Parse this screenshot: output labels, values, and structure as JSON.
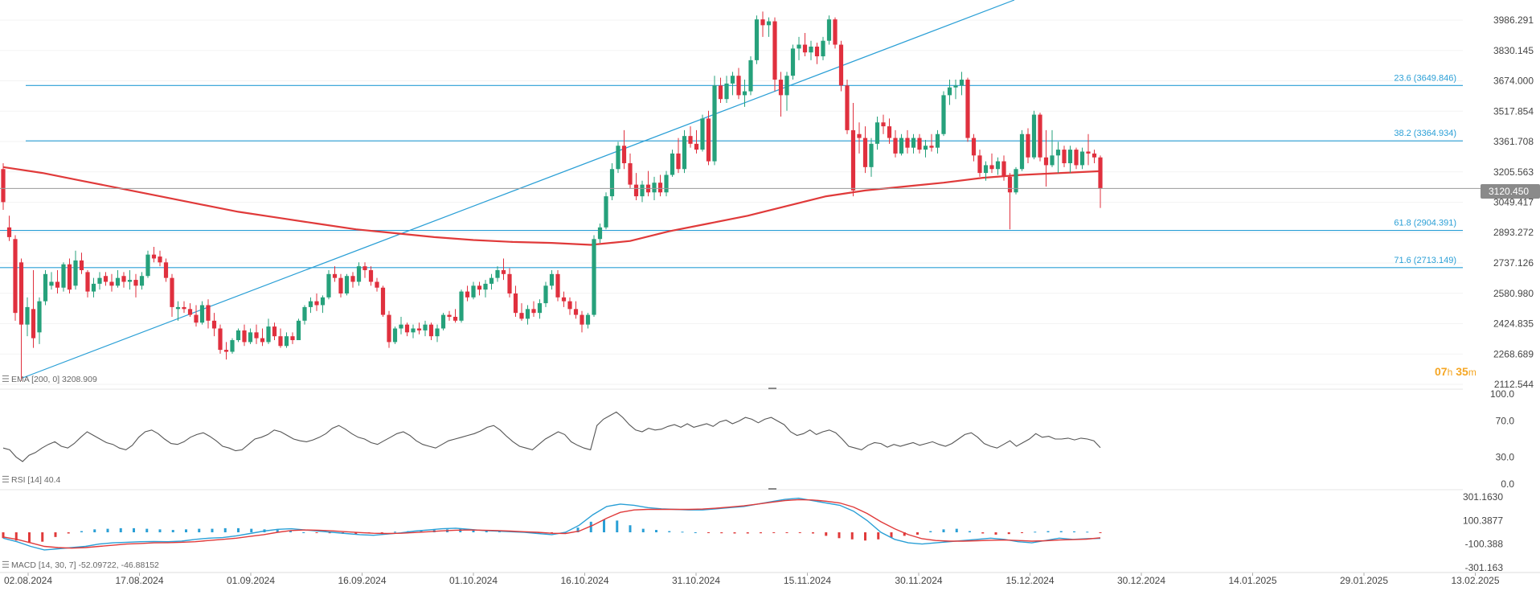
{
  "price_axis": [
    "3986.291",
    "3830.145",
    "3674.000",
    "3517.854",
    "3361.708",
    "3205.563",
    "3049.417",
    "2893.272",
    "2737.126",
    "2580.980",
    "2424.835",
    "2268.689",
    "2112.544"
  ],
  "current_price": "3120.450",
  "countdown": {
    "hours": "07",
    "h": "h",
    "minutes": "35",
    "m": "m"
  },
  "fib_levels": [
    {
      "label": "23.6 (3649.846)",
      "value": 3649.846
    },
    {
      "label": "38.2 (3364.934)",
      "value": 3364.934
    },
    {
      "label": "61.8 (2904.391)",
      "value": 2904.391
    },
    {
      "label": "71.6 (2713.149)",
      "value": 2713.149
    }
  ],
  "ema_label": "EMA [200, 0] 3208.909",
  "rsi_axis": [
    "100.0",
    "70.0",
    "30.0",
    "0.0"
  ],
  "rsi_label": "RSI [14] 40.4",
  "macd_axis": [
    "301.1630",
    "100.3877",
    "-100.388",
    "-301.163"
  ],
  "macd_label": "MACD [14, 30, 7] -52.09722, -46.88152",
  "dates": [
    "02.08.2024",
    "17.08.2024",
    "01.09.2024",
    "16.09.2024",
    "01.10.2024",
    "16.10.2024",
    "31.10.2024",
    "15.11.2024",
    "30.11.2024",
    "15.12.2024",
    "30.12.2024",
    "14.01.2025",
    "29.01.2025",
    "13.02.2025"
  ],
  "colors": {
    "up": "#26a17b",
    "down": "#e0303e",
    "ema": "#e03a3a",
    "fib": "#2a9fd6",
    "rsi": "#555555",
    "macd": "#2a9fd6",
    "signal": "#e03a3a",
    "countdown": "#f5a623"
  },
  "chart_data": {
    "type": "candlestick",
    "title": "",
    "xlabel": "",
    "ylabel": "",
    "ylim": [
      2112.544,
      4020
    ],
    "x_start": "02.08.2024",
    "candles": [
      [
        3220,
        3250,
        3010,
        3050
      ],
      [
        2920,
        2980,
        2850,
        2870
      ],
      [
        2860,
        2880,
        2440,
        2480
      ],
      [
        2740,
        2760,
        2130,
        2420
      ],
      [
        2420,
        2560,
        2360,
        2510
      ],
      [
        2500,
        2700,
        2300,
        2350
      ],
      [
        2380,
        2560,
        2320,
        2540
      ],
      [
        2540,
        2700,
        2520,
        2680
      ],
      [
        2620,
        2690,
        2600,
        2640
      ],
      [
        2640,
        2700,
        2580,
        2610
      ],
      [
        2610,
        2740,
        2590,
        2730
      ],
      [
        2730,
        2760,
        2580,
        2600
      ],
      [
        2620,
        2800,
        2600,
        2750
      ],
      [
        2750,
        2790,
        2680,
        2700
      ],
      [
        2690,
        2700,
        2560,
        2590
      ],
      [
        2590,
        2660,
        2560,
        2630
      ],
      [
        2630,
        2690,
        2600,
        2660
      ],
      [
        2670,
        2690,
        2620,
        2640
      ],
      [
        2640,
        2680,
        2590,
        2620
      ],
      [
        2620,
        2700,
        2610,
        2660
      ],
      [
        2670,
        2690,
        2610,
        2640
      ],
      [
        2640,
        2700,
        2600,
        2650
      ],
      [
        2650,
        2680,
        2560,
        2620
      ],
      [
        2620,
        2690,
        2600,
        2670
      ],
      [
        2670,
        2800,
        2660,
        2780
      ],
      [
        2780,
        2820,
        2740,
        2760
      ],
      [
        2770,
        2800,
        2720,
        2740
      ],
      [
        2740,
        2760,
        2640,
        2660
      ],
      [
        2660,
        2680,
        2460,
        2510
      ],
      [
        2500,
        2540,
        2440,
        2510
      ],
      [
        2510,
        2540,
        2480,
        2500
      ],
      [
        2500,
        2530,
        2460,
        2470
      ],
      [
        2470,
        2520,
        2410,
        2430
      ],
      [
        2430,
        2540,
        2420,
        2520
      ],
      [
        2520,
        2550,
        2400,
        2440
      ],
      [
        2440,
        2480,
        2360,
        2400
      ],
      [
        2400,
        2420,
        2270,
        2290
      ],
      [
        2290,
        2330,
        2240,
        2280
      ],
      [
        2280,
        2350,
        2270,
        2340
      ],
      [
        2340,
        2400,
        2330,
        2390
      ],
      [
        2390,
        2420,
        2310,
        2330
      ],
      [
        2330,
        2400,
        2320,
        2380
      ],
      [
        2380,
        2420,
        2320,
        2350
      ],
      [
        2350,
        2400,
        2310,
        2330
      ],
      [
        2330,
        2450,
        2320,
        2410
      ],
      [
        2410,
        2430,
        2340,
        2360
      ],
      [
        2360,
        2400,
        2300,
        2310
      ],
      [
        2310,
        2380,
        2300,
        2360
      ],
      [
        2360,
        2380,
        2320,
        2340
      ],
      [
        2340,
        2450,
        2340,
        2440
      ],
      [
        2440,
        2520,
        2420,
        2510
      ],
      [
        2510,
        2560,
        2480,
        2540
      ],
      [
        2540,
        2580,
        2490,
        2520
      ],
      [
        2520,
        2570,
        2480,
        2560
      ],
      [
        2560,
        2700,
        2550,
        2680
      ],
      [
        2680,
        2720,
        2640,
        2660
      ],
      [
        2660,
        2680,
        2560,
        2580
      ],
      [
        2580,
        2680,
        2570,
        2670
      ],
      [
        2670,
        2690,
        2610,
        2640
      ],
      [
        2640,
        2740,
        2620,
        2720
      ],
      [
        2720,
        2740,
        2660,
        2700
      ],
      [
        2700,
        2720,
        2620,
        2640
      ],
      [
        2640,
        2660,
        2590,
        2610
      ],
      [
        2610,
        2620,
        2460,
        2470
      ],
      [
        2470,
        2490,
        2300,
        2330
      ],
      [
        2330,
        2410,
        2320,
        2400
      ],
      [
        2400,
        2460,
        2370,
        2420
      ],
      [
        2420,
        2430,
        2360,
        2380
      ],
      [
        2380,
        2420,
        2350,
        2400
      ],
      [
        2400,
        2430,
        2370,
        2390
      ],
      [
        2390,
        2440,
        2360,
        2420
      ],
      [
        2420,
        2430,
        2340,
        2360
      ],
      [
        2360,
        2420,
        2330,
        2400
      ],
      [
        2400,
        2480,
        2390,
        2470
      ],
      [
        2470,
        2490,
        2440,
        2460
      ],
      [
        2460,
        2500,
        2430,
        2440
      ],
      [
        2440,
        2600,
        2430,
        2590
      ],
      [
        2590,
        2620,
        2540,
        2560
      ],
      [
        2560,
        2640,
        2550,
        2620
      ],
      [
        2620,
        2640,
        2570,
        2600
      ],
      [
        2600,
        2650,
        2560,
        2630
      ],
      [
        2630,
        2680,
        2600,
        2660
      ],
      [
        2660,
        2720,
        2640,
        2700
      ],
      [
        2700,
        2760,
        2650,
        2680
      ],
      [
        2680,
        2710,
        2560,
        2580
      ],
      [
        2580,
        2620,
        2460,
        2480
      ],
      [
        2480,
        2530,
        2440,
        2450
      ],
      [
        2450,
        2520,
        2420,
        2500
      ],
      [
        2500,
        2540,
        2460,
        2480
      ],
      [
        2480,
        2550,
        2450,
        2530
      ],
      [
        2530,
        2640,
        2510,
        2620
      ],
      [
        2620,
        2700,
        2600,
        2680
      ],
      [
        2680,
        2700,
        2540,
        2560
      ],
      [
        2560,
        2590,
        2510,
        2540
      ],
      [
        2540,
        2560,
        2470,
        2500
      ],
      [
        2500,
        2540,
        2450,
        2470
      ],
      [
        2470,
        2490,
        2380,
        2420
      ],
      [
        2420,
        2480,
        2400,
        2470
      ],
      [
        2470,
        2880,
        2460,
        2860
      ],
      [
        2860,
        2940,
        2840,
        2920
      ],
      [
        2920,
        3100,
        2910,
        3080
      ],
      [
        3080,
        3250,
        3060,
        3220
      ],
      [
        3220,
        3360,
        3200,
        3340
      ],
      [
        3340,
        3420,
        3220,
        3250
      ],
      [
        3250,
        3300,
        3120,
        3140
      ],
      [
        3140,
        3200,
        3060,
        3080
      ],
      [
        3080,
        3160,
        3050,
        3140
      ],
      [
        3140,
        3210,
        3080,
        3100
      ],
      [
        3100,
        3180,
        3060,
        3150
      ],
      [
        3150,
        3190,
        3080,
        3100
      ],
      [
        3100,
        3210,
        3080,
        3190
      ],
      [
        3190,
        3320,
        3180,
        3300
      ],
      [
        3300,
        3380,
        3200,
        3220
      ],
      [
        3220,
        3420,
        3200,
        3390
      ],
      [
        3390,
        3440,
        3330,
        3350
      ],
      [
        3350,
        3420,
        3300,
        3320
      ],
      [
        3320,
        3500,
        3310,
        3480
      ],
      [
        3480,
        3520,
        3240,
        3260
      ],
      [
        3260,
        3700,
        3240,
        3650
      ],
      [
        3650,
        3690,
        3560,
        3580
      ],
      [
        3580,
        3700,
        3560,
        3660
      ],
      [
        3660,
        3720,
        3600,
        3700
      ],
      [
        3700,
        3740,
        3580,
        3600
      ],
      [
        3600,
        3680,
        3540,
        3620
      ],
      [
        3620,
        3800,
        3600,
        3780
      ],
      [
        3780,
        4010,
        3760,
        3990
      ],
      [
        3990,
        4030,
        3900,
        3960
      ],
      [
        3960,
        4000,
        3900,
        3980
      ],
      [
        3980,
        4000,
        3620,
        3680
      ],
      [
        3680,
        3720,
        3490,
        3600
      ],
      [
        3600,
        3720,
        3520,
        3700
      ],
      [
        3700,
        3860,
        3680,
        3840
      ],
      [
        3840,
        3900,
        3780,
        3860
      ],
      [
        3860,
        3920,
        3800,
        3820
      ],
      [
        3820,
        3880,
        3780,
        3850
      ],
      [
        3850,
        3870,
        3760,
        3800
      ],
      [
        3800,
        3900,
        3780,
        3880
      ],
      [
        3880,
        4010,
        3860,
        3990
      ],
      [
        3990,
        4000,
        3840,
        3860
      ],
      [
        3860,
        3880,
        3620,
        3650
      ],
      [
        3650,
        3680,
        3400,
        3420
      ],
      [
        3420,
        3560,
        3080,
        3110
      ],
      [
        3400,
        3460,
        3300,
        3380
      ],
      [
        3380,
        3440,
        3200,
        3230
      ],
      [
        3230,
        3380,
        3180,
        3350
      ],
      [
        3350,
        3490,
        3320,
        3460
      ],
      [
        3460,
        3500,
        3400,
        3440
      ],
      [
        3440,
        3480,
        3350,
        3380
      ],
      [
        3380,
        3420,
        3280,
        3300
      ],
      [
        3300,
        3400,
        3290,
        3380
      ],
      [
        3380,
        3420,
        3300,
        3330
      ],
      [
        3330,
        3400,
        3300,
        3380
      ],
      [
        3380,
        3400,
        3300,
        3320
      ],
      [
        3320,
        3370,
        3280,
        3340
      ],
      [
        3340,
        3400,
        3310,
        3330
      ],
      [
        3330,
        3420,
        3300,
        3400
      ],
      [
        3400,
        3620,
        3390,
        3600
      ],
      [
        3600,
        3680,
        3550,
        3640
      ],
      [
        3640,
        3680,
        3580,
        3650
      ],
      [
        3650,
        3720,
        3600,
        3680
      ],
      [
        3680,
        3690,
        3360,
        3380
      ],
      [
        3380,
        3400,
        3260,
        3290
      ],
      [
        3290,
        3320,
        3180,
        3200
      ],
      [
        3200,
        3260,
        3160,
        3240
      ],
      [
        3240,
        3300,
        3200,
        3220
      ],
      [
        3220,
        3280,
        3190,
        3260
      ],
      [
        3260,
        3290,
        3160,
        3180
      ],
      [
        3180,
        3200,
        2910,
        3100
      ],
      [
        3100,
        3230,
        3090,
        3220
      ],
      [
        3220,
        3420,
        3210,
        3400
      ],
      [
        3400,
        3430,
        3250,
        3280
      ],
      [
        3280,
        3520,
        3270,
        3500
      ],
      [
        3500,
        3510,
        3260,
        3280
      ],
      [
        3280,
        3420,
        3130,
        3240
      ],
      [
        3240,
        3420,
        3230,
        3290
      ],
      [
        3290,
        3360,
        3200,
        3320
      ],
      [
        3320,
        3340,
        3230,
        3250
      ],
      [
        3250,
        3340,
        3200,
        3320
      ],
      [
        3320,
        3330,
        3220,
        3240
      ],
      [
        3240,
        3330,
        3220,
        3310
      ],
      [
        3310,
        3400,
        3240,
        3300
      ],
      [
        3300,
        3320,
        3250,
        3280
      ],
      [
        3280,
        3290,
        3020,
        3120
      ]
    ],
    "ema": [
      3230,
      3200,
      3160,
      3120,
      3080,
      3040,
      3000,
      2970,
      2940,
      2910,
      2890,
      2870,
      2855,
      2845,
      2840,
      2830,
      2850,
      2900,
      2940,
      2980,
      3030,
      3080,
      3110,
      3130,
      3150,
      3175,
      3190,
      3200,
      3208.909
    ],
    "rsi": [
      40,
      38,
      30,
      25,
      32,
      35,
      40,
      44,
      47,
      42,
      40,
      45,
      52,
      58,
      54,
      50,
      46,
      44,
      40,
      38,
      43,
      52,
      58,
      60,
      56,
      50,
      45,
      44,
      47,
      52,
      55,
      57,
      53,
      48,
      42,
      40,
      37,
      38,
      44,
      50,
      52,
      55,
      60,
      58,
      54,
      50,
      48,
      47,
      49,
      52,
      56,
      62,
      65,
      61,
      56,
      52,
      50,
      46,
      44,
      48,
      52,
      56,
      58,
      54,
      48,
      44,
      42,
      40,
      44,
      48,
      50,
      52,
      54,
      56,
      59,
      63,
      65,
      60,
      53,
      47,
      42,
      40,
      38,
      44,
      50,
      54,
      58,
      55,
      47,
      43,
      40,
      38,
      65,
      72,
      76,
      80,
      74,
      66,
      60,
      58,
      62,
      60,
      61,
      64,
      66,
      63,
      67,
      63,
      65,
      67,
      64,
      69,
      71,
      67,
      70,
      74,
      72,
      68,
      72,
      74,
      70,
      66,
      58,
      54,
      56,
      60,
      55,
      58,
      60,
      57,
      50,
      42,
      40,
      38,
      43,
      46,
      45,
      41,
      44,
      42,
      44,
      46,
      43,
      45,
      47,
      44,
      42,
      45,
      50,
      55,
      57,
      52,
      45,
      42,
      40,
      44,
      48,
      42,
      46,
      50,
      56,
      52,
      53,
      50,
      50,
      51,
      49,
      51,
      50,
      48,
      40.4
    ],
    "macd": [
      -50,
      -80,
      -120,
      -150,
      -140,
      -130,
      -120,
      -100,
      -90,
      -85,
      -80,
      -78,
      -80,
      -75,
      -60,
      -50,
      -45,
      -30,
      -10,
      10,
      25,
      30,
      20,
      10,
      0,
      -10,
      -20,
      -25,
      -15,
      -5,
      10,
      20,
      30,
      35,
      25,
      15,
      10,
      5,
      0,
      -10,
      -20,
      0,
      60,
      150,
      220,
      240,
      230,
      210,
      200,
      195,
      190,
      190,
      200,
      210,
      220,
      240,
      260,
      280,
      290,
      270,
      250,
      230,
      180,
      100,
      0,
      -60,
      -90,
      -100,
      -90,
      -80,
      -70,
      -60,
      -50,
      -60,
      -80,
      -90,
      -70,
      -50,
      -60,
      -55,
      -52.09722
    ],
    "signal": [
      -40,
      -60,
      -90,
      -120,
      -130,
      -135,
      -130,
      -120,
      -110,
      -100,
      -95,
      -90,
      -88,
      -85,
      -80,
      -70,
      -60,
      -50,
      -35,
      -20,
      0,
      15,
      20,
      18,
      12,
      5,
      -2,
      -8,
      -10,
      -8,
      -2,
      5,
      12,
      18,
      20,
      18,
      15,
      10,
      5,
      0,
      -8,
      -10,
      10,
      60,
      120,
      170,
      190,
      195,
      195,
      195,
      195,
      198,
      205,
      215,
      225,
      240,
      255,
      270,
      278,
      275,
      265,
      250,
      215,
      160,
      90,
      30,
      -20,
      -55,
      -70,
      -75,
      -75,
      -72,
      -68,
      -66,
      -70,
      -75,
      -72,
      -66,
      -62,
      -58,
      -46.88152
    ],
    "macd_hist": [
      -50,
      -70,
      -90,
      -80,
      -40,
      -10,
      10,
      25,
      30,
      35,
      35,
      30,
      25,
      20,
      25,
      30,
      30,
      35,
      35,
      30,
      25,
      20,
      10,
      0,
      -5,
      -8,
      -12,
      -15,
      -10,
      -5,
      5,
      10,
      15,
      20,
      25,
      30,
      25,
      20,
      15,
      10,
      5,
      -5,
      -8,
      0,
      40,
      90,
      110,
      100,
      60,
      30,
      20,
      10,
      5,
      0,
      -5,
      -8,
      -10,
      -10,
      -8,
      -6,
      -4,
      -5,
      -10,
      -30,
      -50,
      -60,
      -70,
      -60,
      -45,
      -30,
      -20,
      10,
      25,
      30,
      10,
      -10,
      -20,
      -15,
      -5,
      5,
      10,
      10,
      8,
      5,
      -5.22
    ]
  }
}
